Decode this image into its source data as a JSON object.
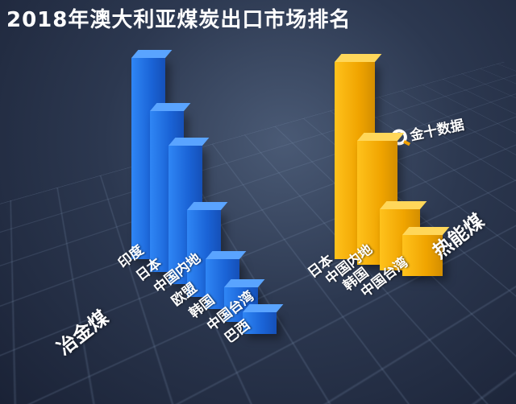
{
  "title": "2018年澳大利亚煤炭出口市场排名",
  "watermark": {
    "icon": "search-magnifier-icon",
    "text": "金十数据"
  },
  "chart_data": [
    {
      "type": "bar",
      "series_label": "冶金煤",
      "color": "#1f6fe8",
      "categories": [
        "印度",
        "日本",
        "中国内地",
        "欧盟",
        "韩国",
        "中国台湾",
        "巴西"
      ],
      "values": [
        100,
        80,
        69,
        43,
        25,
        17,
        11
      ]
    },
    {
      "type": "bar",
      "series_label": "热能煤",
      "color": "#f5a800",
      "categories": [
        "日本",
        "中国内地",
        "韩国",
        "中国台湾"
      ],
      "values": [
        100,
        63,
        31,
        21
      ]
    }
  ]
}
